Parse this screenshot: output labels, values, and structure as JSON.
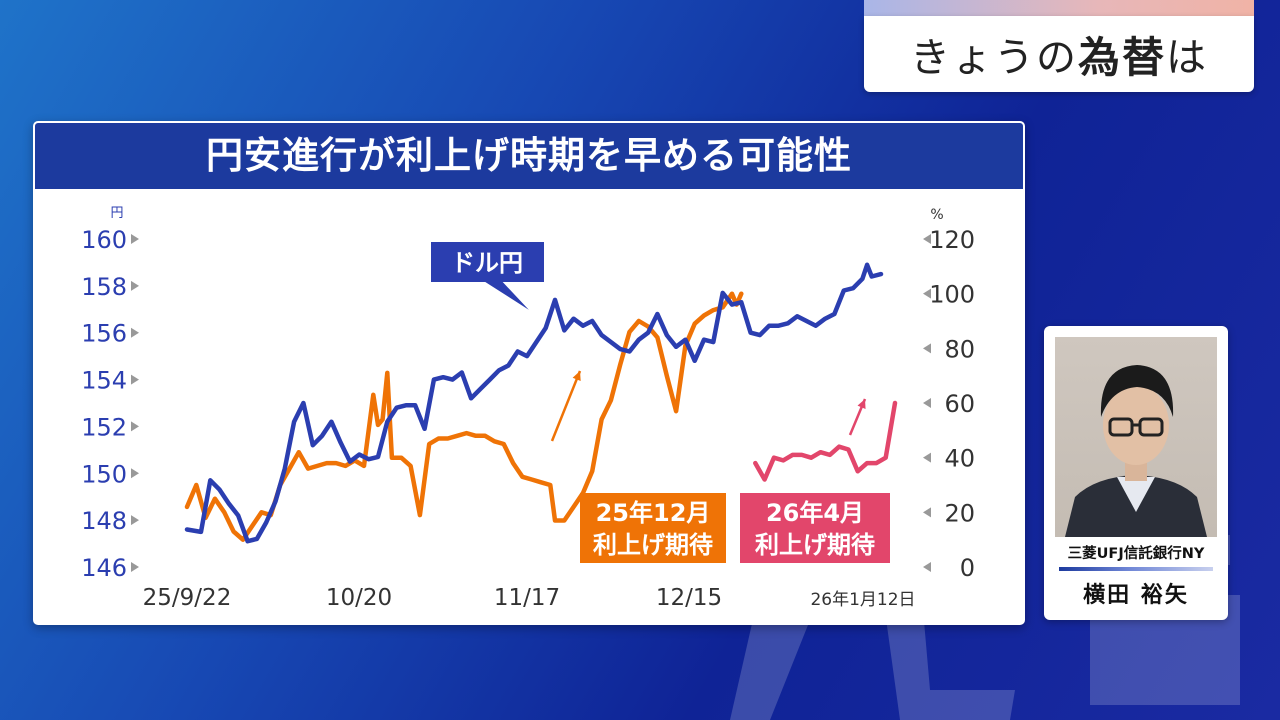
{
  "topic": {
    "prefix": "きょうの",
    "main": "為替",
    "suffix": "は"
  },
  "chart_title": "円安進行が利上げ時期を早める可能性",
  "chart_data": {
    "type": "line",
    "left_axis": {
      "unit": "円",
      "ticks": [
        160,
        158,
        156,
        154,
        152,
        150,
        148,
        146
      ],
      "ylim": [
        146,
        160
      ]
    },
    "right_axis": {
      "unit": "%",
      "ticks": [
        120,
        100,
        80,
        60,
        40,
        20,
        0
      ],
      "ylim": [
        0,
        120
      ]
    },
    "x_labels": [
      "25/9/22",
      "10/20",
      "11/17",
      "12/15",
      "26年1月12日"
    ],
    "series": [
      {
        "name": "ドル円",
        "axis": "left",
        "color": "#2b3eb0",
        "points": [
          [
            0,
            147.6
          ],
          [
            3,
            147.5
          ],
          [
            5,
            149.7
          ],
          [
            7,
            149.3
          ],
          [
            9,
            148.7
          ],
          [
            11,
            148.2
          ],
          [
            13,
            147.1
          ],
          [
            15,
            147.2
          ],
          [
            17,
            147.9
          ],
          [
            19,
            148.8
          ],
          [
            21,
            150.2
          ],
          [
            23,
            152.2
          ],
          [
            25,
            153.0
          ],
          [
            27,
            151.2
          ],
          [
            29,
            151.6
          ],
          [
            31,
            152.2
          ],
          [
            33,
            151.3
          ],
          [
            35,
            150.5
          ],
          [
            37,
            150.8
          ],
          [
            39,
            150.6
          ],
          [
            41,
            150.7
          ],
          [
            43,
            152.2
          ],
          [
            45,
            152.8
          ],
          [
            47,
            152.9
          ],
          [
            49,
            152.9
          ],
          [
            51,
            151.9
          ],
          [
            53,
            154.0
          ],
          [
            55,
            154.1
          ],
          [
            57,
            154.0
          ],
          [
            59,
            154.3
          ],
          [
            61,
            153.2
          ],
          [
            63,
            153.6
          ],
          [
            65,
            154.0
          ],
          [
            67,
            154.4
          ],
          [
            69,
            154.6
          ],
          [
            71,
            155.2
          ],
          [
            73,
            155.0
          ],
          [
            75,
            155.6
          ],
          [
            77,
            156.2
          ],
          [
            79,
            157.4
          ],
          [
            81,
            156.1
          ],
          [
            83,
            156.6
          ],
          [
            85,
            156.3
          ],
          [
            87,
            156.5
          ],
          [
            89,
            155.9
          ],
          [
            91,
            155.6
          ],
          [
            93,
            155.3
          ],
          [
            95,
            155.2
          ],
          [
            97,
            155.7
          ],
          [
            99,
            156.0
          ],
          [
            101,
            156.8
          ],
          [
            103,
            155.9
          ],
          [
            105,
            155.4
          ],
          [
            107,
            155.7
          ],
          [
            109,
            154.8
          ],
          [
            111,
            155.7
          ],
          [
            113,
            155.6
          ],
          [
            115,
            157.7
          ],
          [
            117,
            157.2
          ],
          [
            119,
            157.3
          ],
          [
            121,
            156.0
          ],
          [
            123,
            155.9
          ],
          [
            125,
            156.3
          ],
          [
            127,
            156.3
          ],
          [
            129,
            156.4
          ],
          [
            131,
            156.7
          ],
          [
            133,
            156.5
          ],
          [
            135,
            156.3
          ],
          [
            137,
            156.6
          ],
          [
            139,
            156.8
          ],
          [
            141,
            157.8
          ],
          [
            143,
            157.9
          ],
          [
            145,
            158.3
          ],
          [
            146,
            158.9
          ],
          [
            147,
            158.4
          ],
          [
            149,
            158.5
          ]
        ]
      },
      {
        "name": "25年12月 利上げ期待",
        "axis": "right",
        "color": "#ef7306",
        "points": [
          [
            0,
            22
          ],
          [
            2,
            30
          ],
          [
            4,
            18
          ],
          [
            6,
            25
          ],
          [
            8,
            20
          ],
          [
            10,
            13
          ],
          [
            12,
            10
          ],
          [
            14,
            15
          ],
          [
            16,
            20
          ],
          [
            18,
            19
          ],
          [
            20,
            30
          ],
          [
            22,
            36
          ],
          [
            24,
            42
          ],
          [
            26,
            36
          ],
          [
            28,
            37
          ],
          [
            30,
            38
          ],
          [
            32,
            38
          ],
          [
            34,
            37
          ],
          [
            36,
            39
          ],
          [
            38,
            37
          ],
          [
            40,
            63
          ],
          [
            41,
            52
          ],
          [
            42,
            54
          ],
          [
            43,
            71
          ],
          [
            44,
            40
          ],
          [
            46,
            40
          ],
          [
            48,
            37
          ],
          [
            50,
            19
          ],
          [
            52,
            45
          ],
          [
            54,
            47
          ],
          [
            56,
            47
          ],
          [
            58,
            48
          ],
          [
            60,
            49
          ],
          [
            62,
            48
          ],
          [
            64,
            48
          ],
          [
            66,
            46
          ],
          [
            68,
            45
          ],
          [
            70,
            38
          ],
          [
            72,
            33
          ],
          [
            74,
            32
          ],
          [
            76,
            31
          ],
          [
            78,
            30
          ],
          [
            79,
            17
          ],
          [
            81,
            17
          ],
          [
            83,
            22
          ],
          [
            85,
            27
          ],
          [
            87,
            35
          ],
          [
            89,
            54
          ],
          [
            91,
            61
          ],
          [
            93,
            74
          ],
          [
            95,
            86
          ],
          [
            97,
            90
          ],
          [
            99,
            88
          ],
          [
            101,
            84
          ],
          [
            103,
            70
          ],
          [
            105,
            57
          ],
          [
            107,
            81
          ],
          [
            109,
            89
          ],
          [
            111,
            92
          ],
          [
            113,
            94
          ],
          [
            115,
            95
          ],
          [
            117,
            100
          ],
          [
            118,
            96
          ],
          [
            119,
            100
          ]
        ]
      },
      {
        "name": "26年4月 利上げ期待",
        "axis": "right",
        "color": "#e2466b",
        "points": [
          [
            122,
            38
          ],
          [
            124,
            32
          ],
          [
            126,
            40
          ],
          [
            128,
            39
          ],
          [
            130,
            41
          ],
          [
            132,
            41
          ],
          [
            134,
            40
          ],
          [
            136,
            42
          ],
          [
            138,
            41
          ],
          [
            140,
            44
          ],
          [
            142,
            43
          ],
          [
            144,
            35
          ],
          [
            146,
            38
          ],
          [
            148,
            38
          ],
          [
            150,
            40
          ],
          [
            152,
            60
          ]
        ]
      }
    ]
  },
  "labels": {
    "usdjpy": "ドル円",
    "dec_1": "25年12月",
    "dec_2": "利上げ期待",
    "apr_1": "26年4月",
    "apr_2": "利上げ期待"
  },
  "person": {
    "company": "三菱UFJ信託銀行NY",
    "name": "横田 裕矢"
  }
}
